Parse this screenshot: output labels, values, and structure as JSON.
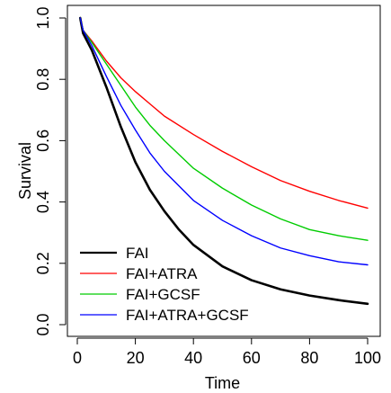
{
  "chart_data": {
    "type": "line",
    "title": "",
    "xlabel": "Time",
    "ylabel": "Survival",
    "xlim": [
      0,
      100
    ],
    "ylim": [
      0,
      1
    ],
    "xticks": [
      "0",
      "20",
      "40",
      "60",
      "80",
      "100"
    ],
    "yticks": [
      "0.0",
      "0.2",
      "0.4",
      "0.6",
      "0.8",
      "1.0"
    ],
    "grid": false,
    "legend_position": "bottom-left",
    "legend_labels": [
      "FAI",
      "FAI+ATRA",
      "FAI+GCSF",
      "FAI+ATRA+GCSF"
    ],
    "series": [
      {
        "name": "FAI",
        "color": "#000000",
        "line_width": "thick",
        "x": [
          1,
          2,
          5,
          10,
          15,
          20,
          25,
          30,
          35,
          40,
          50,
          60,
          70,
          80,
          90,
          100
        ],
        "y": [
          1.0,
          0.95,
          0.895,
          0.775,
          0.645,
          0.53,
          0.44,
          0.37,
          0.31,
          0.26,
          0.19,
          0.145,
          0.115,
          0.095,
          0.08,
          0.068
        ]
      },
      {
        "name": "FAI+ATRA",
        "color": "#ff0000",
        "x": [
          1,
          2,
          5,
          10,
          15,
          20,
          25,
          30,
          40,
          50,
          60,
          70,
          80,
          90,
          100
        ],
        "y": [
          1.0,
          0.96,
          0.925,
          0.86,
          0.805,
          0.76,
          0.72,
          0.68,
          0.62,
          0.565,
          0.515,
          0.47,
          0.435,
          0.405,
          0.38
        ]
      },
      {
        "name": "FAI+GCSF",
        "color": "#00cc00",
        "x": [
          1,
          2,
          5,
          10,
          15,
          20,
          25,
          30,
          40,
          50,
          60,
          70,
          80,
          90,
          100
        ],
        "y": [
          1.0,
          0.96,
          0.92,
          0.85,
          0.78,
          0.71,
          0.65,
          0.6,
          0.51,
          0.445,
          0.39,
          0.345,
          0.31,
          0.29,
          0.275
        ]
      },
      {
        "name": "FAI+ATRA+GCSF",
        "color": "#0000ff",
        "x": [
          1,
          2,
          5,
          10,
          15,
          20,
          25,
          30,
          40,
          50,
          60,
          70,
          80,
          90,
          100
        ],
        "y": [
          1.0,
          0.96,
          0.91,
          0.81,
          0.715,
          0.635,
          0.56,
          0.5,
          0.405,
          0.34,
          0.29,
          0.25,
          0.225,
          0.205,
          0.195
        ]
      }
    ]
  }
}
